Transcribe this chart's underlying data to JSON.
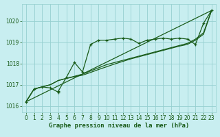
{
  "background_color": "#c8eef0",
  "grid_color": "#96d0d0",
  "line_color": "#1a5c1a",
  "title": "Graphe pression niveau de la mer (hPa)",
  "tick_fontsize": 5.5,
  "title_fontsize": 6.5,
  "xlim": [
    -0.5,
    23.5
  ],
  "ylim": [
    1015.7,
    1020.8
  ],
  "yticks": [
    1016,
    1017,
    1018,
    1019,
    1020
  ],
  "xticks": [
    0,
    1,
    2,
    3,
    4,
    5,
    6,
    7,
    8,
    9,
    10,
    11,
    12,
    13,
    14,
    15,
    16,
    17,
    18,
    19,
    20,
    21,
    22,
    23
  ],
  "line1_x": [
    0,
    1,
    2,
    3,
    4,
    4,
    5,
    6,
    7,
    8,
    9,
    10,
    11,
    12,
    13,
    14,
    15,
    16,
    17,
    18,
    19,
    20,
    21,
    22,
    23
  ],
  "line1_y": [
    1016.2,
    1016.8,
    1016.9,
    1016.85,
    1016.65,
    1016.7,
    1017.35,
    1018.05,
    1017.6,
    1018.9,
    1019.1,
    1019.1,
    1019.15,
    1019.2,
    1019.15,
    1018.95,
    1019.1,
    1019.15,
    1019.2,
    1019.15,
    1019.2,
    1019.15,
    1018.9,
    1019.9,
    1020.5
  ],
  "line2_x": [
    0,
    1,
    2,
    3,
    4,
    5,
    6,
    7,
    8,
    9,
    10,
    11,
    12,
    13,
    14,
    15,
    16,
    17,
    18,
    19,
    20,
    21,
    22,
    23
  ],
  "line2_y": [
    1016.2,
    1016.8,
    1016.9,
    1017.0,
    1017.2,
    1017.3,
    1017.4,
    1017.5,
    1017.65,
    1017.8,
    1017.95,
    1018.05,
    1018.15,
    1018.25,
    1018.35,
    1018.45,
    1018.55,
    1018.65,
    1018.75,
    1018.85,
    1018.95,
    1019.15,
    1019.45,
    1020.5
  ],
  "line3_x": [
    0,
    1,
    2,
    3,
    4,
    5,
    6,
    7,
    8,
    9,
    10,
    11,
    12,
    13,
    14,
    15,
    16,
    17,
    18,
    19,
    20,
    21,
    22,
    23
  ],
  "line3_y": [
    1016.2,
    1016.8,
    1016.9,
    1017.0,
    1017.2,
    1017.3,
    1017.38,
    1017.45,
    1017.58,
    1017.72,
    1017.85,
    1017.98,
    1018.1,
    1018.22,
    1018.32,
    1018.42,
    1018.52,
    1018.62,
    1018.72,
    1018.82,
    1018.9,
    1019.1,
    1019.38,
    1020.5
  ],
  "line4_x": [
    0,
    23
  ],
  "line4_y": [
    1016.2,
    1020.5
  ]
}
